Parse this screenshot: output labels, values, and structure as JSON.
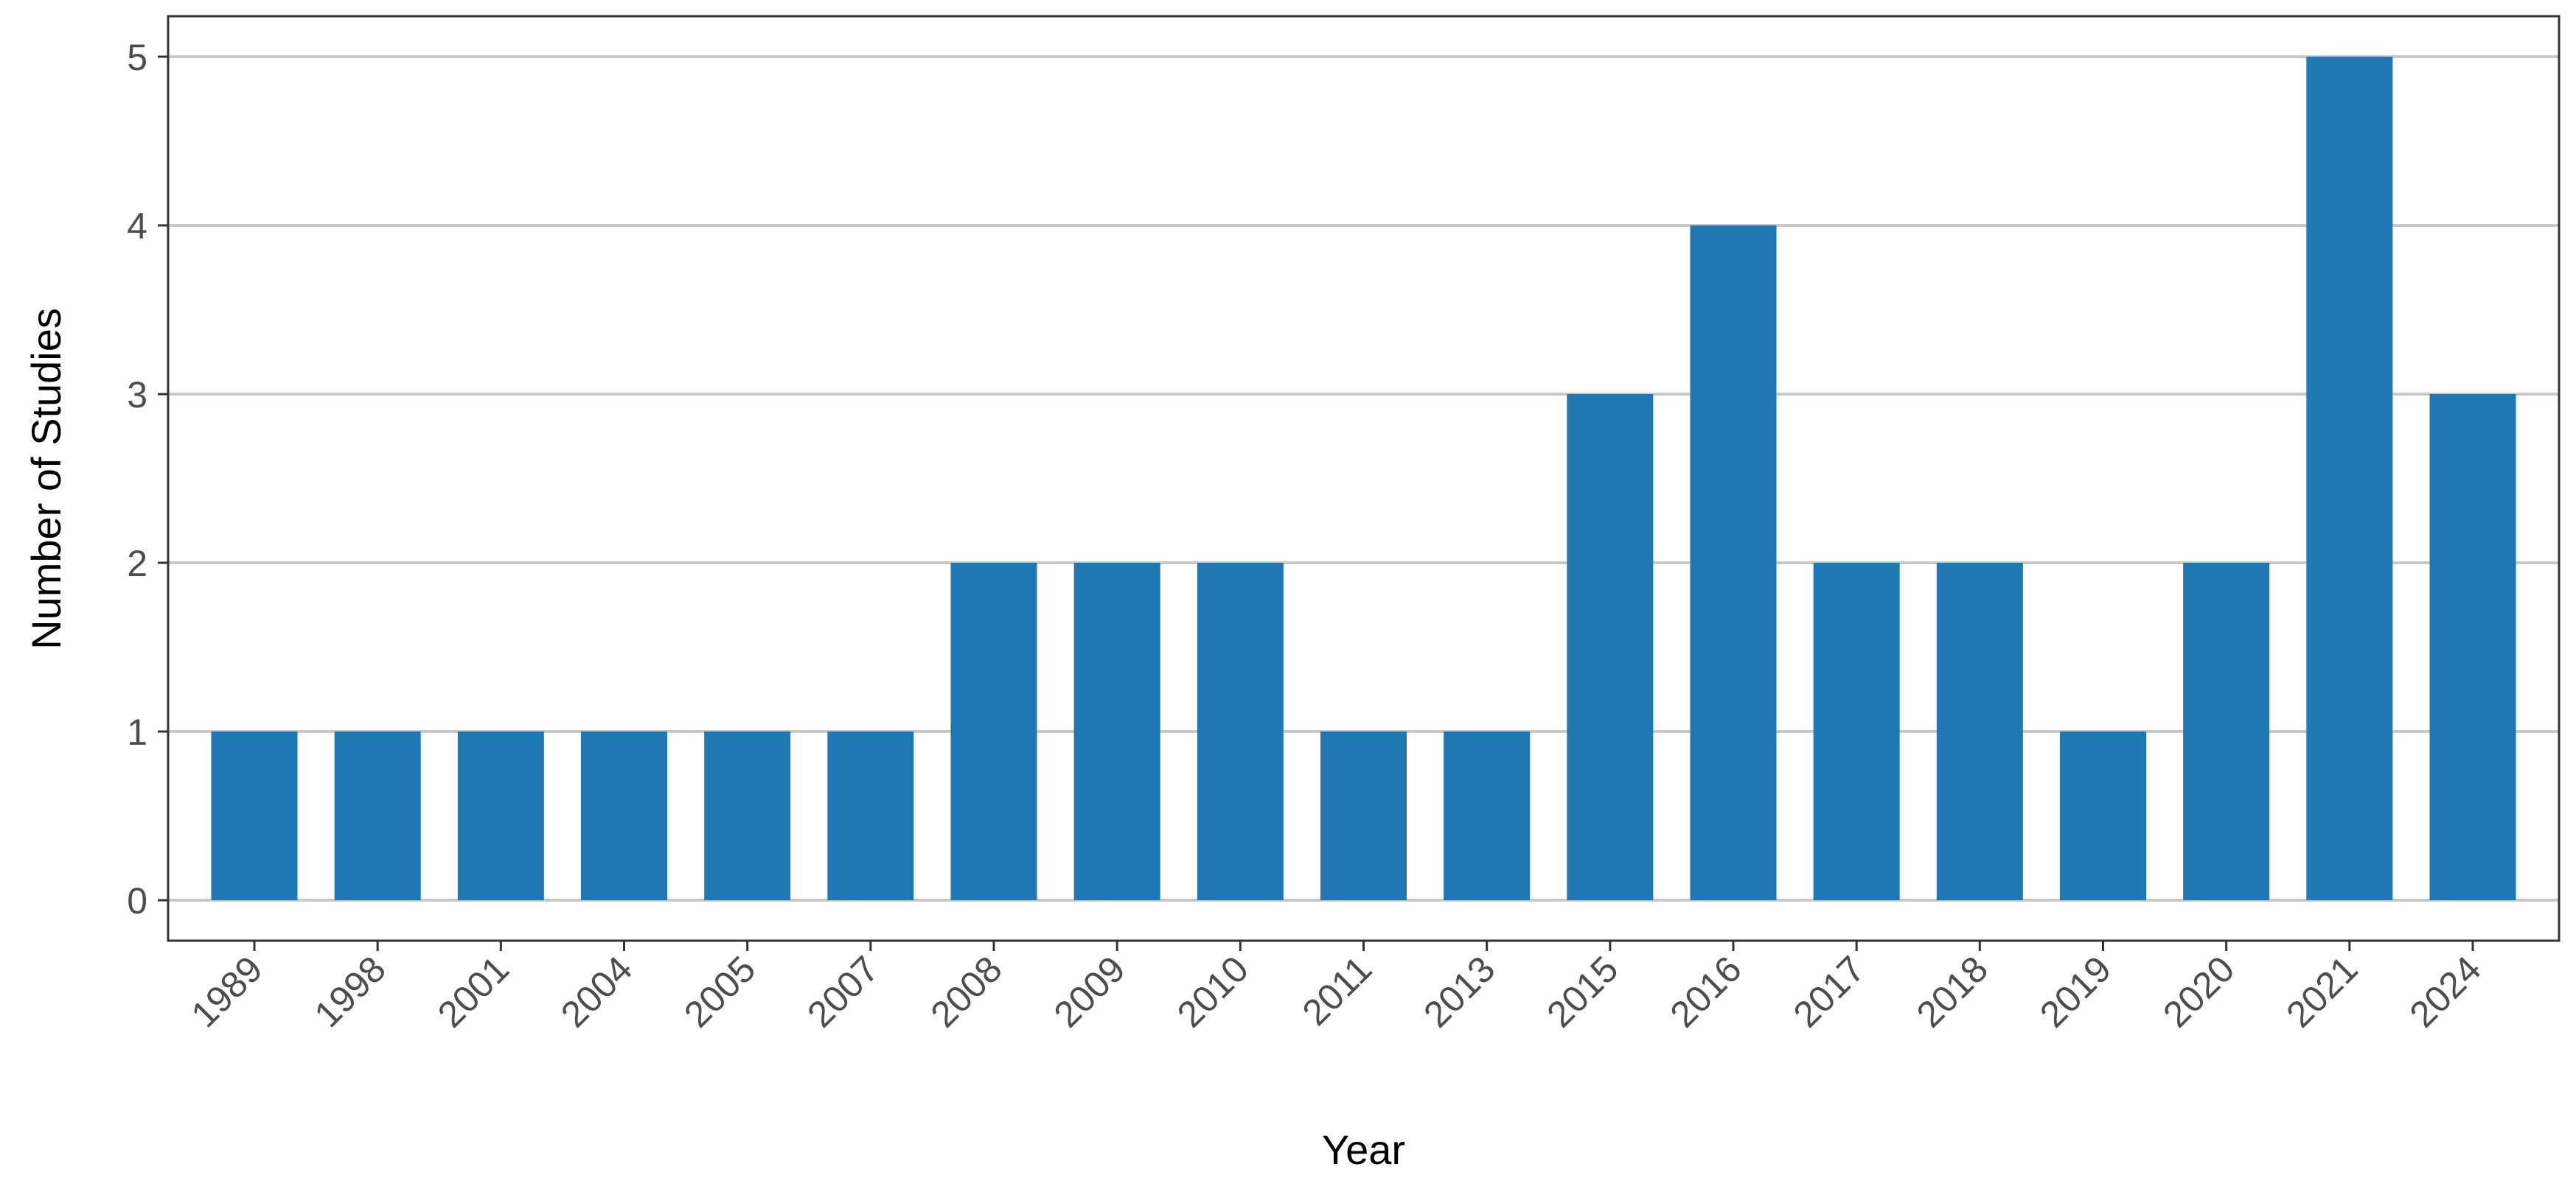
{
  "chart_data": {
    "type": "bar",
    "title": "",
    "xlabel": "Year",
    "ylabel": "Number of Studies",
    "categories": [
      "1989",
      "1998",
      "2001",
      "2004",
      "2005",
      "2007",
      "2008",
      "2009",
      "2010",
      "2011",
      "2013",
      "2015",
      "2016",
      "2017",
      "2018",
      "2019",
      "2020",
      "2021",
      "2024"
    ],
    "values": [
      1,
      1,
      1,
      1,
      1,
      1,
      2,
      2,
      2,
      1,
      1,
      3,
      4,
      2,
      2,
      1,
      2,
      5,
      3
    ],
    "yticks": [
      "0",
      "1",
      "2",
      "3",
      "4",
      "5"
    ],
    "ylim": [
      -0.24,
      5.24
    ],
    "grid": "horizontal",
    "legend": "none",
    "bar_color": "#1f77b4"
  }
}
